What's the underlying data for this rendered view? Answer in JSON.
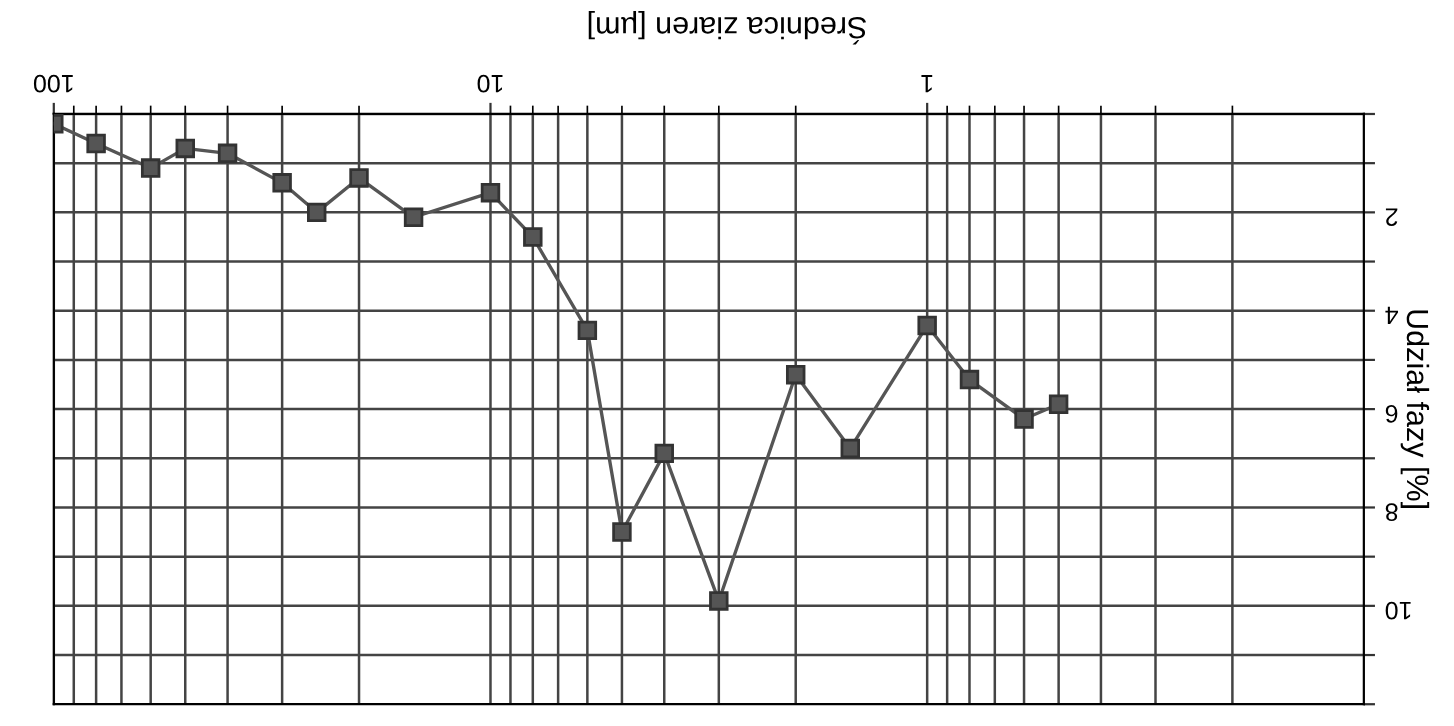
{
  "chart_data": {
    "type": "line",
    "title": "Średnica ziaren [µm]",
    "ylabel": "Udział fazy [%]",
    "x": [
      100,
      80,
      60,
      50,
      40,
      30,
      25,
      20,
      15,
      10,
      8,
      6,
      5,
      4,
      3,
      2,
      1.5,
      1,
      0.8,
      0.6,
      0.5
    ],
    "series": [
      {
        "color": "#555555",
        "values": [
          0.2,
          0.6,
          1.1,
          0.7,
          0.8,
          1.4,
          2.0,
          1.3,
          2.1,
          1.6,
          2.5,
          4.4,
          8.5,
          6.9,
          9.9,
          5.3,
          6.8,
          4.3,
          5.4,
          6.2,
          5.9
        ]
      }
    ],
    "log": "x",
    "xlim": [
      100,
      0.1
    ],
    "xticks": [
      100,
      10,
      1
    ],
    "ylim": [
      12,
      0
    ],
    "yticks": [
      {
        "value": 0,
        "label": null
      },
      {
        "value": 1,
        "label": null
      },
      2,
      {
        "value": 3,
        "label": null
      },
      4,
      {
        "value": 5,
        "label": null
      },
      6,
      {
        "value": 7,
        "label": null
      },
      8,
      {
        "value": 9,
        "label": null
      },
      10,
      {
        "value": 11,
        "label": null
      },
      {
        "value": 12,
        "label": null
      }
    ],
    "grid": true,
    "marker": "square",
    "line_style": "solid"
  }
}
